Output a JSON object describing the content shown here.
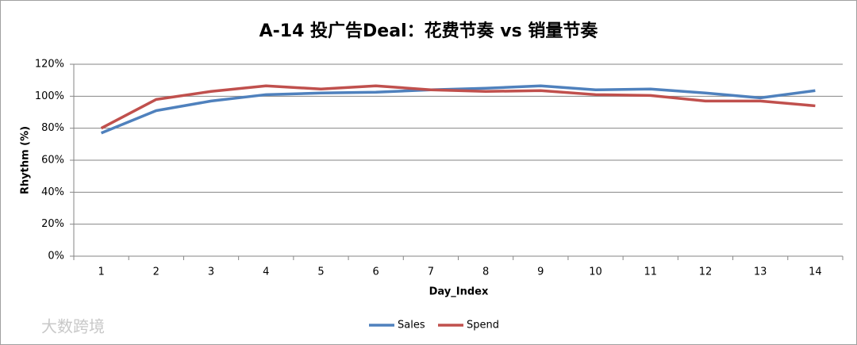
{
  "chart_data": {
    "type": "line",
    "title": "A-14 投广告Deal：花费节奏 vs 销量节奏",
    "x_label": "Day_Index",
    "y_label": "Rhythm (%)",
    "categories": [
      "1",
      "2",
      "3",
      "4",
      "5",
      "6",
      "7",
      "8",
      "9",
      "10",
      "11",
      "12",
      "13",
      "14"
    ],
    "series": [
      {
        "name": "Sales",
        "color": "#4f81bd",
        "values": [
          77,
          91,
          97,
          101,
          102,
          102.5,
          104,
          105,
          106.5,
          104,
          104.5,
          102,
          99,
          103.5
        ]
      },
      {
        "name": "Spend",
        "color": "#c0504d",
        "values": [
          80,
          98,
          103,
          106.5,
          104.5,
          106.5,
          104,
          103,
          103.5,
          101,
          100.5,
          97,
          97,
          94
        ]
      }
    ],
    "ylim": [
      0,
      120
    ],
    "yticks": [
      {
        "value": 0,
        "label": "0%"
      },
      {
        "value": 20,
        "label": "20%"
      },
      {
        "value": 40,
        "label": "40%"
      },
      {
        "value": 60,
        "label": "60%"
      },
      {
        "value": 80,
        "label": "80%"
      },
      {
        "value": 100,
        "label": "100%"
      },
      {
        "value": 120,
        "label": "120%"
      }
    ],
    "grid": true,
    "legend": "bottom",
    "watermark": "大数跨境"
  }
}
